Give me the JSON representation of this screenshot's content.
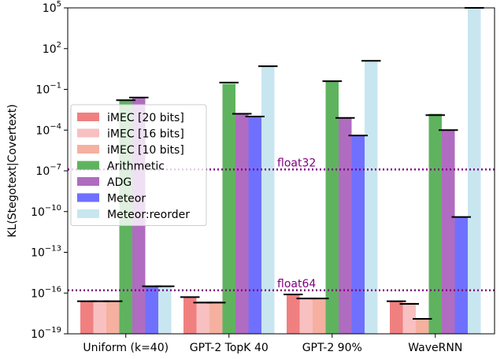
{
  "chart_data": {
    "type": "bar",
    "ylabel": "KL(Stegotext|Covertext)",
    "yscale": "log",
    "ylim_exp": [
      -19,
      5
    ],
    "y_ticks": [
      {
        "exp": 5,
        "label": "10",
        "sup": "5"
      },
      {
        "exp": 2,
        "label": "10",
        "sup": "2"
      },
      {
        "exp": -1,
        "label": "10",
        "sup": "−1"
      },
      {
        "exp": -4,
        "label": "10",
        "sup": "−4"
      },
      {
        "exp": -7,
        "label": "10",
        "sup": "−7"
      },
      {
        "exp": -10,
        "label": "10",
        "sup": "−10"
      },
      {
        "exp": -13,
        "label": "10",
        "sup": "−13"
      },
      {
        "exp": -16,
        "label": "10",
        "sup": "−16"
      },
      {
        "exp": -19,
        "label": "10",
        "sup": "−19"
      }
    ],
    "categories": [
      "Uniform (k=40)",
      "GPT-2 TopK 40",
      "GPT-2 90%",
      "WaveRNN"
    ],
    "series": [
      {
        "name": "iMEC [20 bits]",
        "color": "#f08080",
        "log10_values": [
          -16.6,
          -16.3,
          -16.1,
          -16.6
        ],
        "err_top": [
          -16.6,
          -16.3,
          -16.1,
          -16.6
        ]
      },
      {
        "name": "iMEC [16 bits]",
        "color": "#f8c0c0",
        "log10_values": [
          -16.6,
          -16.6,
          -16.4,
          -16.7
        ],
        "err_top": [
          -16.6,
          -16.7,
          -16.4,
          -16.8
        ]
      },
      {
        "name": "iMEC [10 bits]",
        "color": "#f5b0a0",
        "log10_values": [
          -16.6,
          -16.6,
          -16.4,
          -17.9
        ],
        "err_top": [
          -16.6,
          -16.7,
          -16.4,
          -17.9
        ]
      },
      {
        "name": "Arithmetic",
        "color": "#5fb35f",
        "log10_values": [
          -1.8,
          -0.6,
          -0.4,
          -2.8
        ],
        "err_top": [
          -1.8,
          -0.5,
          -0.4,
          -2.9
        ]
      },
      {
        "name": "ADG",
        "color": "#b06cc0",
        "log10_values": [
          -1.6,
          -2.8,
          -3.1,
          -4.0
        ],
        "err_top": [
          -1.6,
          -2.8,
          -3.1,
          -4.0
        ]
      },
      {
        "name": "Meteor",
        "color": "#7070ff",
        "log10_values": [
          -15.5,
          -3.0,
          -4.4,
          -10.4
        ],
        "err_top": [
          -15.5,
          -3.0,
          -4.4,
          -10.4
        ]
      },
      {
        "name": "Meteor:reorder",
        "color": "#c8e6f0",
        "log10_values": [
          -15.5,
          0.7,
          1.1,
          5.0
        ],
        "err_top": [
          -15.5,
          0.7,
          1.1,
          5.0
        ]
      }
    ],
    "reference_lines": [
      {
        "label": "float32",
        "log10_value": -6.9,
        "color": "#800080"
      },
      {
        "label": "float64",
        "log10_value": -15.8,
        "color": "#800080"
      }
    ],
    "legend": "center-left",
    "grid": false
  }
}
